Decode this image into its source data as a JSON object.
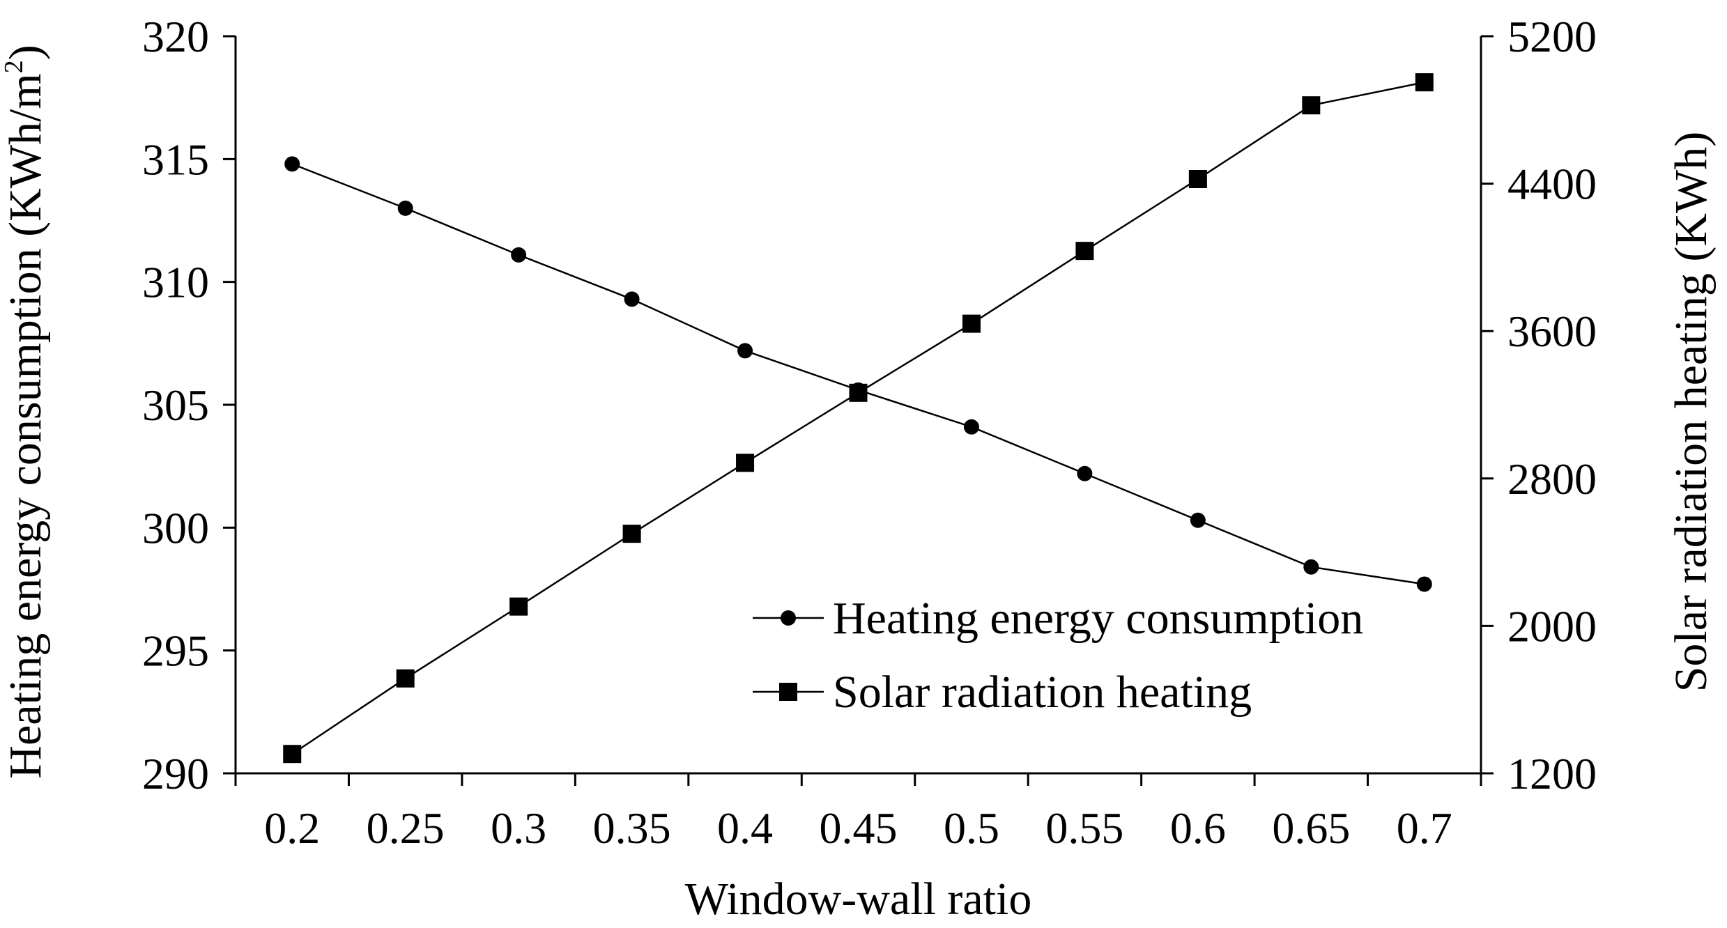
{
  "chart_data": {
    "type": "line",
    "title": "",
    "xlabel": "Window-wall ratio",
    "ylabel_left": "Heating energy consumption (KWh/m",
    "ylabel_left_superscript": "2",
    "ylabel_left_close": ")",
    "ylabel_right": "Solar radiation heating (KWh)",
    "categories": [
      "0.2",
      "0.25",
      "0.3",
      "0.35",
      "0.4",
      "0.45",
      "0.5",
      "0.55",
      "0.6",
      "0.65",
      "0.7"
    ],
    "ylim_left": [
      290,
      320
    ],
    "yticks_left": [
      "290",
      "295",
      "300",
      "305",
      "310",
      "315",
      "320"
    ],
    "ylim_right": [
      1200,
      5200
    ],
    "yticks_right": [
      "1200",
      "2000",
      "2800",
      "3600",
      "4400",
      "5200"
    ],
    "grid": false,
    "legend_position": "lower-right",
    "series": [
      {
        "name": "Heating energy consumption",
        "axis": "left",
        "marker": "circle",
        "values": [
          314.8,
          313.0,
          311.1,
          309.3,
          307.2,
          305.6,
          304.1,
          302.2,
          300.3,
          298.4,
          297.7
        ]
      },
      {
        "name": "Solar radiation heating",
        "axis": "right",
        "marker": "square",
        "values": [
          1305,
          1715,
          2105,
          2500,
          2885,
          3265,
          3640,
          4035,
          4425,
          4825,
          4950
        ]
      }
    ],
    "colors": {
      "line": "#000000",
      "marker": "#000000"
    }
  }
}
